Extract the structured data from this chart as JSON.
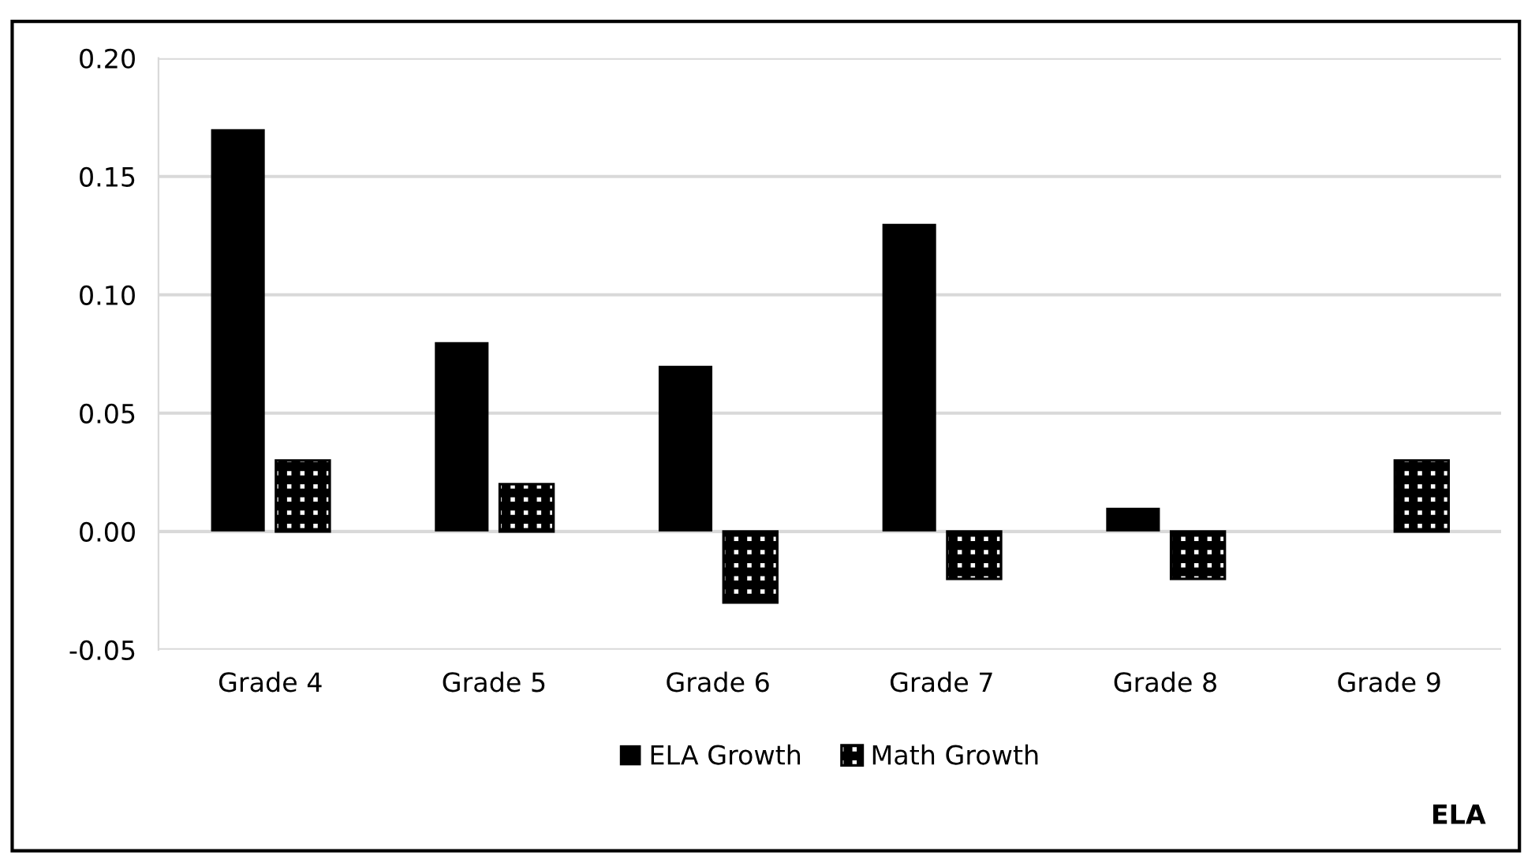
{
  "chart_data": {
    "type": "bar",
    "categories": [
      "Grade 4",
      "Grade 5",
      "Grade 6",
      "Grade 7",
      "Grade 8",
      "Grade 9"
    ],
    "series": [
      {
        "name": "ELA Growth",
        "color": "#000000",
        "values": [
          0.17,
          0.08,
          0.07,
          0.13,
          0.01,
          null
        ]
      },
      {
        "name": "Math Growth",
        "color": "#000000",
        "values": [
          0.03,
          0.02,
          -0.03,
          -0.02,
          -0.02,
          0.03
        ]
      }
    ],
    "ylim": [
      -0.05,
      0.2
    ],
    "yticks": [
      {
        "value": -0.05,
        "label": "-0.05"
      },
      {
        "value": 0,
        "label": "0.00"
      },
      {
        "value": 0.05,
        "label": "0.05"
      },
      {
        "value": 0.1,
        "label": "0.10"
      },
      {
        "value": 0.15,
        "label": "0.15"
      },
      {
        "value": 0.2,
        "label": "0.20"
      }
    ],
    "grid": "y",
    "legend": "bottom",
    "annotations": [
      "ELA"
    ]
  }
}
